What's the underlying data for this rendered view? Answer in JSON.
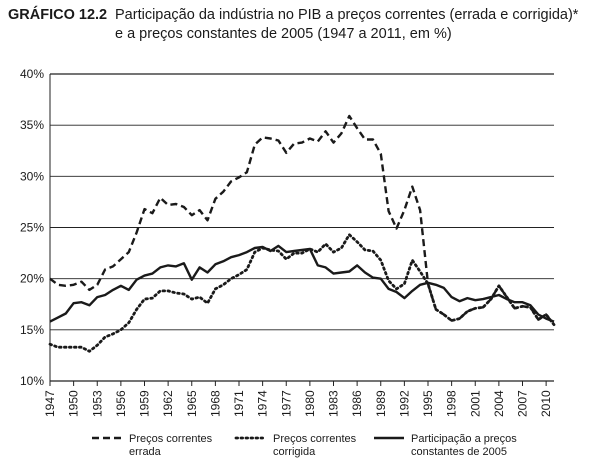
{
  "chart_data": {
    "type": "line",
    "title_label": "GRÁFICO 12.2",
    "title_line1": "Participação da indústria no PIB a preços correntes (errada e corrigida)*",
    "title_line2": "e a preços constantes de 2005 (1947 a 2011, em %)",
    "ylim": [
      10,
      40
    ],
    "y_ticks": [
      10,
      15,
      20,
      25,
      30,
      35,
      40
    ],
    "y_tick_labels": [
      "10%",
      "15%",
      "20%",
      "25%",
      "30%",
      "35%",
      "40%"
    ],
    "xlim": [
      1947,
      2011
    ],
    "x_ticks": [
      1947,
      1950,
      1953,
      1956,
      1959,
      1962,
      1965,
      1968,
      1971,
      1974,
      1977,
      1980,
      1983,
      1986,
      1989,
      1992,
      1995,
      1998,
      2001,
      2004,
      2007,
      2010
    ],
    "grid": "horizontal",
    "legend_placement": "bottom",
    "series": [
      {
        "name_line1": "Preços correntes",
        "name_line2": "errada",
        "style": "dashed",
        "x": [
          1947,
          1948,
          1949,
          1950,
          1951,
          1952,
          1953,
          1954,
          1955,
          1956,
          1957,
          1958,
          1959,
          1960,
          1961,
          1962,
          1963,
          1964,
          1965,
          1966,
          1967,
          1968,
          1969,
          1970,
          1971,
          1972,
          1973,
          1974,
          1975,
          1976,
          1977,
          1978,
          1979,
          1980,
          1981,
          1982,
          1983,
          1984,
          1985,
          1986,
          1987,
          1988,
          1989,
          1990,
          1991,
          1992,
          1993,
          1994,
          1995,
          1996,
          1997,
          1998,
          1999,
          2000,
          2001,
          2002,
          2003,
          2004,
          2005,
          2006,
          2007,
          2008,
          2009,
          2010,
          2011
        ],
        "y": [
          20.0,
          19.4,
          19.3,
          19.4,
          19.7,
          18.9,
          19.4,
          20.9,
          21.2,
          21.9,
          22.6,
          24.5,
          26.8,
          26.4,
          27.9,
          27.2,
          27.3,
          27.0,
          26.2,
          26.7,
          25.7,
          27.8,
          28.5,
          29.5,
          29.9,
          30.4,
          33.1,
          33.8,
          33.7,
          33.5,
          32.3,
          33.2,
          33.3,
          33.7,
          33.4,
          34.4,
          33.3,
          34.2,
          35.9,
          34.7,
          33.6,
          33.6,
          32.2,
          26.6,
          24.9,
          26.7,
          29.0,
          26.7,
          19.5,
          17.0,
          16.5,
          15.9,
          16.1,
          16.8,
          17.1,
          17.2,
          18.0,
          19.3,
          18.2,
          17.1,
          17.3,
          17.2,
          16.0,
          16.5,
          15.5
        ]
      },
      {
        "name_line1": "Preços correntes",
        "name_line2": "corrigida",
        "style": "dotted",
        "x": [
          1947,
          1948,
          1949,
          1950,
          1951,
          1952,
          1953,
          1954,
          1955,
          1956,
          1957,
          1958,
          1959,
          1960,
          1961,
          1962,
          1963,
          1964,
          1965,
          1966,
          1967,
          1968,
          1969,
          1970,
          1971,
          1972,
          1973,
          1974,
          1975,
          1976,
          1977,
          1978,
          1979,
          1980,
          1981,
          1982,
          1983,
          1984,
          1985,
          1986,
          1987,
          1988,
          1989,
          1990,
          1991,
          1992,
          1993,
          1994,
          1995,
          1996,
          1997,
          1998,
          1999,
          2000,
          2001,
          2002,
          2003,
          2004,
          2005,
          2006,
          2007,
          2008,
          2009,
          2010,
          2011
        ],
        "y": [
          13.6,
          13.3,
          13.3,
          13.3,
          13.3,
          12.9,
          13.5,
          14.3,
          14.6,
          15.0,
          15.7,
          17.0,
          18.0,
          18.1,
          18.8,
          18.8,
          18.6,
          18.5,
          18.0,
          18.2,
          17.6,
          19.0,
          19.4,
          20.0,
          20.4,
          20.9,
          22.6,
          23.0,
          22.8,
          22.7,
          21.9,
          22.5,
          22.5,
          22.9,
          22.6,
          23.4,
          22.6,
          23.0,
          24.3,
          23.6,
          22.8,
          22.7,
          21.8,
          19.8,
          19.0,
          19.5,
          21.8,
          20.7,
          19.5,
          17.0,
          16.5,
          15.9,
          16.1,
          16.8,
          17.1,
          17.2,
          18.0,
          19.3,
          18.2,
          17.1,
          17.3,
          17.2,
          16.0,
          16.5,
          15.5
        ]
      },
      {
        "name_line1": "Participação a preços",
        "name_line2": "constantes de 2005",
        "style": "solid",
        "x": [
          1947,
          1948,
          1949,
          1950,
          1951,
          1952,
          1953,
          1954,
          1955,
          1956,
          1957,
          1958,
          1959,
          1960,
          1961,
          1962,
          1963,
          1964,
          1965,
          1966,
          1967,
          1968,
          1969,
          1970,
          1971,
          1972,
          1973,
          1974,
          1975,
          1976,
          1977,
          1978,
          1979,
          1980,
          1981,
          1982,
          1983,
          1984,
          1985,
          1986,
          1987,
          1988,
          1989,
          1990,
          1991,
          1992,
          1993,
          1994,
          1995,
          1996,
          1997,
          1998,
          1999,
          2000,
          2001,
          2002,
          2003,
          2004,
          2005,
          2006,
          2007,
          2008,
          2009,
          2010,
          2011
        ],
        "y": [
          15.8,
          16.2,
          16.6,
          17.6,
          17.7,
          17.4,
          18.2,
          18.4,
          18.9,
          19.3,
          18.9,
          19.9,
          20.3,
          20.5,
          21.1,
          21.3,
          21.2,
          21.5,
          19.9,
          21.1,
          20.6,
          21.4,
          21.7,
          22.1,
          22.3,
          22.6,
          23.0,
          23.1,
          22.7,
          23.2,
          22.6,
          22.7,
          22.8,
          22.9,
          21.3,
          21.1,
          20.5,
          20.6,
          20.7,
          21.3,
          20.6,
          20.1,
          20.0,
          19.0,
          18.7,
          18.1,
          18.8,
          19.4,
          19.6,
          19.4,
          19.1,
          18.2,
          17.8,
          18.1,
          17.9,
          18.0,
          18.2,
          18.4,
          18.0,
          17.7,
          17.7,
          17.4,
          16.5,
          16.1,
          15.8
        ]
      }
    ]
  }
}
